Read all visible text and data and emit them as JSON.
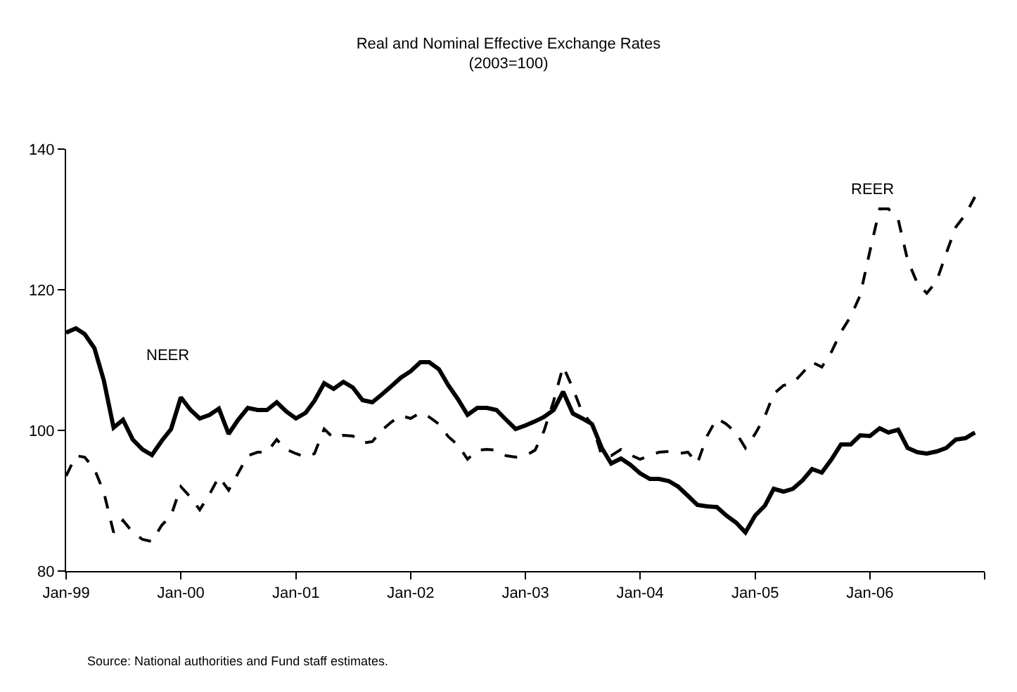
{
  "chart_data": {
    "type": "line",
    "title": "Real and Nominal Effective Exchange Rates",
    "subtitle": "(2003=100)",
    "x": [
      "1999-01",
      "1999-02",
      "1999-03",
      "1999-04",
      "1999-05",
      "1999-06",
      "1999-07",
      "1999-08",
      "1999-09",
      "1999-10",
      "1999-11",
      "1999-12",
      "2000-01",
      "2000-02",
      "2000-03",
      "2000-04",
      "2000-05",
      "2000-06",
      "2000-07",
      "2000-08",
      "2000-09",
      "2000-10",
      "2000-11",
      "2000-12",
      "2001-01",
      "2001-02",
      "2001-03",
      "2001-04",
      "2001-05",
      "2001-06",
      "2001-07",
      "2001-08",
      "2001-09",
      "2001-10",
      "2001-11",
      "2001-12",
      "2002-01",
      "2002-02",
      "2002-03",
      "2002-04",
      "2002-05",
      "2002-06",
      "2002-07",
      "2002-08",
      "2002-09",
      "2002-10",
      "2002-11",
      "2002-12",
      "2003-01",
      "2003-02",
      "2003-03",
      "2003-04",
      "2003-05",
      "2003-06",
      "2003-07",
      "2003-08",
      "2003-09",
      "2003-10",
      "2003-11",
      "2003-12",
      "2004-01",
      "2004-02",
      "2004-03",
      "2004-04",
      "2004-05",
      "2004-06",
      "2004-07",
      "2004-08",
      "2004-09",
      "2004-10",
      "2004-11",
      "2004-12",
      "2005-01",
      "2005-02",
      "2005-03",
      "2005-04",
      "2005-05",
      "2005-06",
      "2005-07",
      "2005-08",
      "2005-09",
      "2005-10",
      "2005-11",
      "2005-12",
      "2006-01",
      "2006-02",
      "2006-03",
      "2006-04",
      "2006-05",
      "2006-06",
      "2006-07",
      "2006-08",
      "2006-09",
      "2006-10",
      "2006-11",
      "2006-12"
    ],
    "series": [
      {
        "name": "NEER",
        "color": "#000000",
        "line_style": "solid",
        "values": [
          113.9,
          114.5,
          113.7,
          111.7,
          107.1,
          100.4,
          101.5,
          98.7,
          97.3,
          96.5,
          98.5,
          100.2,
          104.7,
          102.9,
          101.7,
          102.2,
          103.1,
          99.5,
          101.5,
          103.2,
          102.9,
          102.9,
          104.0,
          102.7,
          101.7,
          102.5,
          104.2,
          106.7,
          105.9,
          106.9,
          106.1,
          104.3,
          104.0,
          105.1,
          106.3,
          107.5,
          108.4,
          109.7,
          109.7,
          108.7,
          106.4,
          104.4,
          102.2,
          103.2,
          103.2,
          102.9,
          101.5,
          100.2,
          100.7,
          101.3,
          101.9,
          102.9,
          105.5,
          102.4,
          101.7,
          100.9,
          97.5,
          95.3,
          96.0,
          95.1,
          93.9,
          93.1,
          93.1,
          92.8,
          92.0,
          90.7,
          89.4,
          89.2,
          89.1,
          87.9,
          86.9,
          85.5,
          87.9,
          89.3,
          91.7,
          91.3,
          91.7,
          92.9,
          94.5,
          94.0,
          95.9,
          98.0,
          98.0,
          99.3,
          99.2,
          100.3,
          99.7,
          100.1,
          97.5,
          96.9,
          96.7,
          97.0,
          97.5,
          98.7,
          98.9,
          99.7
        ]
      },
      {
        "name": "REER",
        "color": "#000000",
        "line_style": "dashed",
        "values": [
          93.5,
          96.4,
          96.2,
          94.5,
          91.2,
          85.5,
          87.2,
          85.5,
          84.5,
          84.2,
          86.5,
          87.9,
          92.0,
          90.5,
          88.7,
          90.9,
          93.4,
          91.5,
          93.9,
          96.4,
          96.9,
          96.9,
          98.7,
          97.3,
          96.7,
          96.2,
          96.7,
          100.2,
          98.9,
          99.3,
          99.2,
          98.2,
          98.4,
          100.0,
          101.2,
          102.1,
          101.7,
          102.5,
          101.9,
          100.9,
          99.1,
          97.9,
          95.9,
          97.2,
          97.3,
          97.2,
          96.4,
          96.2,
          96.4,
          97.2,
          99.9,
          104.2,
          109.1,
          106.0,
          102.5,
          100.9,
          96.4,
          96.4,
          97.3,
          96.5,
          95.9,
          96.4,
          96.9,
          97.0,
          96.7,
          96.9,
          95.3,
          99.2,
          101.7,
          100.9,
          99.7,
          97.5,
          99.5,
          102.0,
          105.2,
          106.4,
          106.7,
          108.2,
          109.7,
          109.0,
          111.2,
          114.0,
          116.2,
          119.2,
          125.5,
          131.5,
          131.5,
          130.0,
          124.2,
          120.9,
          119.5,
          121.2,
          125.2,
          128.9,
          130.7,
          133.2
        ]
      }
    ],
    "xlim": [
      "1999-01",
      "2007-01"
    ],
    "xticks": [
      {
        "value": "1999-01",
        "label": "Jan-99"
      },
      {
        "value": "2000-01",
        "label": "Jan-00"
      },
      {
        "value": "2001-01",
        "label": "Jan-01"
      },
      {
        "value": "2002-01",
        "label": "Jan-02"
      },
      {
        "value": "2003-01",
        "label": "Jan-03"
      },
      {
        "value": "2004-01",
        "label": "Jan-04"
      },
      {
        "value": "2005-01",
        "label": "Jan-05"
      },
      {
        "value": "2006-01",
        "label": "Jan-06"
      },
      {
        "value": "2007-01",
        "label": null
      }
    ],
    "ylim": [
      80,
      140
    ],
    "yticks": [
      80,
      100,
      120,
      140
    ],
    "legend": false,
    "marker": "none",
    "annotations": [
      "Source: National authorities and Fund staff estimates."
    ]
  }
}
